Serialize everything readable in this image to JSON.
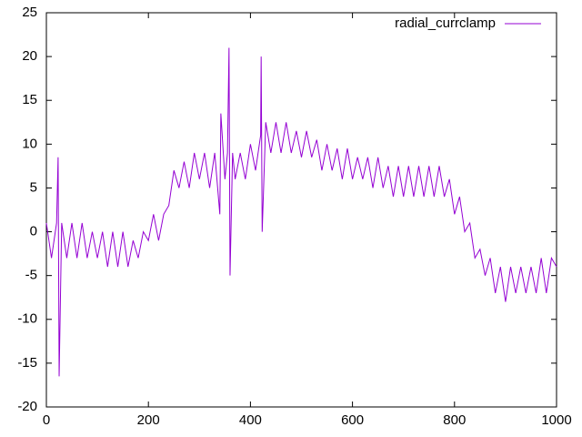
{
  "chart_data": {
    "type": "line",
    "x": [
      0,
      10,
      20,
      23,
      25,
      30,
      40,
      50,
      60,
      70,
      80,
      90,
      100,
      110,
      120,
      130,
      140,
      150,
      160,
      170,
      180,
      190,
      200,
      210,
      220,
      230,
      240,
      250,
      260,
      270,
      280,
      290,
      300,
      310,
      320,
      330,
      340,
      342,
      350,
      355,
      358,
      360,
      365,
      370,
      380,
      390,
      400,
      410,
      420,
      421,
      423,
      430,
      440,
      450,
      460,
      470,
      480,
      490,
      500,
      510,
      520,
      530,
      540,
      550,
      560,
      570,
      580,
      590,
      600,
      610,
      620,
      630,
      640,
      650,
      660,
      670,
      680,
      690,
      700,
      710,
      720,
      730,
      740,
      750,
      760,
      770,
      780,
      790,
      800,
      810,
      820,
      830,
      840,
      850,
      860,
      870,
      880,
      890,
      900,
      910,
      920,
      930,
      940,
      950,
      960,
      970,
      980,
      990,
      1000
    ],
    "series": [
      {
        "name": "radial_currclamp",
        "color": "#9400d3",
        "values": [
          1,
          -3,
          1,
          8.5,
          -16.5,
          1,
          -3,
          1,
          -3,
          1,
          -3,
          0,
          -3,
          0,
          -4,
          0,
          -4,
          0,
          -4,
          -1,
          -3,
          0,
          -1,
          2,
          -1,
          2,
          3,
          7,
          5,
          8,
          5,
          9,
          6,
          9,
          5,
          9,
          2,
          13.5,
          6,
          9,
          21,
          -5,
          9,
          6,
          9,
          6,
          10,
          7,
          11,
          20,
          0,
          12.5,
          9,
          12.5,
          9,
          12.5,
          9,
          11.5,
          8.5,
          11.5,
          8.5,
          10.5,
          7,
          10,
          7,
          9.5,
          6,
          9.5,
          6,
          8.5,
          6,
          8.5,
          5,
          8.5,
          5,
          7.5,
          4,
          7.5,
          4,
          7.5,
          4,
          7.5,
          4,
          7.5,
          4,
          7.5,
          4,
          6,
          2,
          4,
          0,
          1,
          -3,
          -2,
          -5,
          -3,
          -7,
          -4,
          -8,
          -4,
          -7,
          -4,
          -7,
          -4,
          -7,
          -3,
          -7,
          -3,
          -4
        ]
      }
    ],
    "xlim": [
      0,
      1000
    ],
    "xticks": [
      0,
      200,
      400,
      600,
      800,
      1000
    ],
    "ylim": [
      -20,
      25
    ],
    "yticks": [
      -20,
      -15,
      -10,
      -5,
      0,
      5,
      10,
      15,
      20,
      25
    ],
    "legend": "top-right"
  }
}
